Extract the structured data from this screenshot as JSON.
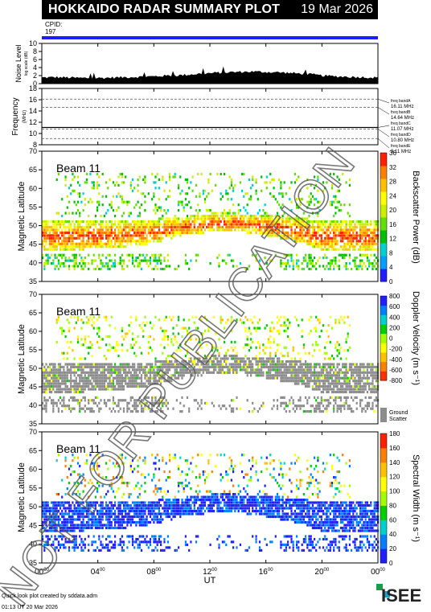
{
  "header": {
    "title": "HOKKAIDO RADAR SUMMARY PLOT",
    "date": "19 Mar 2026"
  },
  "cpid": {
    "label": "CPID:",
    "value": "197"
  },
  "footer": {
    "line1": "Quick look plot created by sddata.adm",
    "line2": "01:13 UT 20 Mar 2026"
  },
  "logo": {
    "text": "ISEE"
  },
  "watermark": "NOT FOR PUBLICATION",
  "colors": {
    "background": "#ffffff",
    "header": "#000000",
    "cpid_bar": "#1c1cff",
    "noise_fill": "#000000",
    "ground_scatter": "#8c8c8c",
    "dashed_line": "#555555"
  },
  "chart_data": [
    {
      "type": "area",
      "name": "noise",
      "ylabel": "Noise Level",
      "ylabel_sub": "log scale (dB)",
      "ylim": [
        0,
        10
      ],
      "yticks": [
        0,
        2,
        4,
        6,
        8,
        10
      ],
      "x": [
        0,
        1,
        2,
        3,
        4,
        5,
        6,
        7,
        8,
        9,
        10,
        11,
        12,
        13,
        14,
        15,
        16,
        17,
        18,
        19,
        20,
        21,
        22,
        23,
        24
      ],
      "values": [
        1.5,
        1.6,
        1.5,
        1.4,
        1.4,
        1.5,
        1.6,
        1.7,
        1.8,
        2.0,
        2.1,
        2.4,
        2.6,
        2.8,
        2.9,
        3.0,
        2.9,
        2.8,
        2.6,
        2.4,
        2.0,
        1.8,
        1.7,
        1.6,
        1.5
      ]
    },
    {
      "type": "line",
      "name": "frequency",
      "ylabel": "Frequency",
      "ylabel_sub": "(MHz)",
      "ylim": [
        8,
        18
      ],
      "yticks": [
        8,
        10,
        12,
        14,
        16,
        18
      ],
      "bands": [
        {
          "label": "freq bandA",
          "value": "16.11 MHz",
          "mhz": 16.11
        },
        {
          "label": "freq bandB",
          "value": "14.64 MHz",
          "mhz": 14.64
        },
        {
          "label": "freq bandC",
          "value": "11.07 MHz",
          "mhz": 11.07
        },
        {
          "label": "freq bandD",
          "value": "10.80 MHz",
          "mhz": 10.8
        },
        {
          "label": "freq bandE",
          "value": "9.11 MHz",
          "mhz": 9.11
        }
      ],
      "operating_mhz": 11.07
    },
    {
      "type": "heatmap",
      "name": "power",
      "beam_label": "Beam 11",
      "ylabel": "Magnetic Latitude",
      "ylim": [
        35,
        70
      ],
      "yticks": [
        35,
        40,
        45,
        50,
        55,
        60,
        65,
        70
      ],
      "colorbar": {
        "label": "Backscatter Power (dB)",
        "range": [
          0,
          36
        ],
        "ticks": [
          0,
          4,
          8,
          12,
          16,
          20,
          24,
          28,
          32,
          36
        ]
      },
      "echo_band": {
        "x": [
          0,
          2,
          4,
          6,
          8,
          10,
          12,
          14,
          16,
          18,
          20,
          22,
          24
        ],
        "lower_lat": [
          43,
          43,
          43.5,
          44,
          45,
          47,
          48,
          48,
          47,
          45.5,
          43,
          43,
          43
        ],
        "upper_lat": [
          51,
          51,
          51,
          51,
          51.5,
          52,
          53,
          53,
          52.5,
          52,
          51,
          51,
          51
        ]
      }
    },
    {
      "type": "heatmap",
      "name": "velocity",
      "beam_label": "Beam 11",
      "ylabel": "Magnetic Latitude",
      "ylim": [
        35,
        70
      ],
      "yticks": [
        35,
        40,
        45,
        50,
        55,
        60,
        65,
        70
      ],
      "colorbar": {
        "label": "Doppler Velocity (m s⁻¹)",
        "range": [
          -800,
          800
        ],
        "ticks": [
          -800,
          -600,
          -400,
          -200,
          0,
          200,
          400,
          600,
          800
        ]
      },
      "ground_scatter_label": "Ground Scatter"
    },
    {
      "type": "heatmap",
      "name": "width",
      "beam_label": "Beam 11",
      "ylabel": "Magnetic Latitude",
      "ylim": [
        35,
        70
      ],
      "yticks": [
        35,
        40,
        45,
        50,
        55,
        60,
        65,
        70
      ],
      "colorbar": {
        "label": "Spectral Width (m s⁻¹)",
        "range": [
          0,
          180
        ],
        "ticks": [
          0,
          20,
          40,
          60,
          80,
          100,
          120,
          140,
          160,
          180
        ]
      }
    }
  ],
  "xaxis": {
    "label": "UT",
    "range": [
      0,
      24
    ],
    "ticks": [
      {
        "hour": 0,
        "label": "00",
        "sup": "00"
      },
      {
        "hour": 4,
        "label": "04",
        "sup": "00"
      },
      {
        "hour": 8,
        "label": "08",
        "sup": "00"
      },
      {
        "hour": 12,
        "label": "12",
        "sup": "00"
      },
      {
        "hour": 16,
        "label": "16",
        "sup": "00"
      },
      {
        "hour": 20,
        "label": "20",
        "sup": "00"
      },
      {
        "hour": 24,
        "label": "00",
        "sup": "00"
      }
    ]
  }
}
